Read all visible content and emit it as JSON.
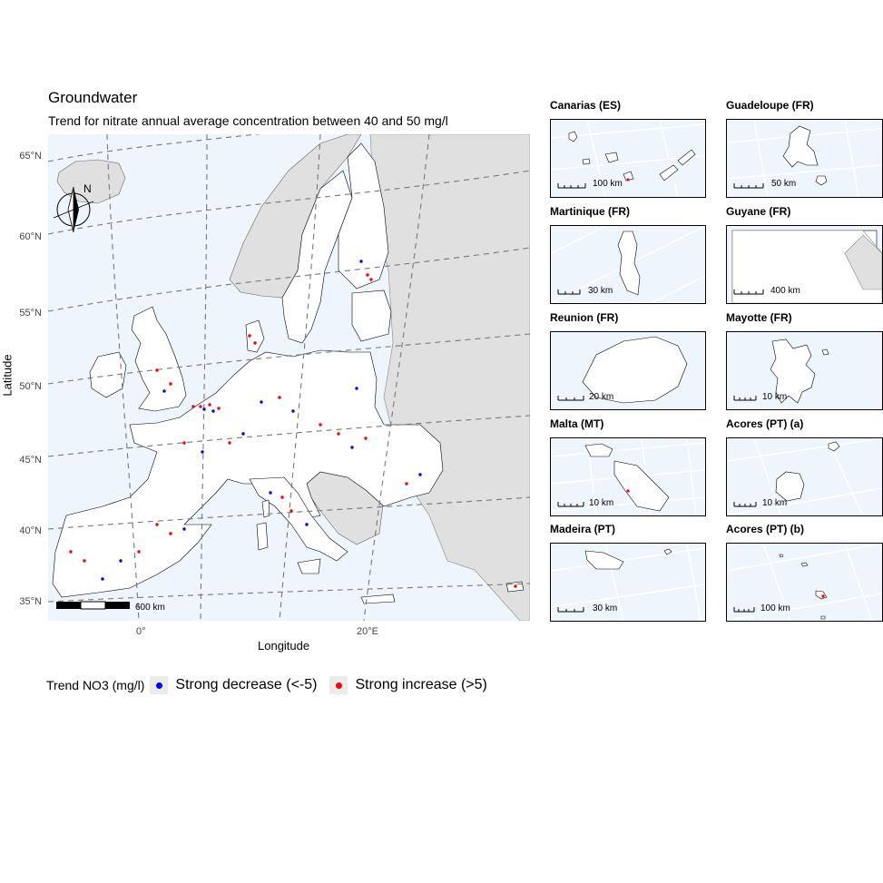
{
  "title": "Groundwater",
  "subtitle": "Trend for nitrate annual average concentration between 40 and 50 mg/l",
  "axes": {
    "xlabel": "Longitude",
    "ylabel": "Latitude",
    "y_ticks": [
      "65°N",
      "60°N",
      "55°N",
      "50°N",
      "45°N",
      "40°N",
      "35°N"
    ],
    "x_ticks": [
      "0°",
      "20°E"
    ]
  },
  "north_arrow_label": "N",
  "main_scale_label": "600 km",
  "legend": {
    "title": "Trend NO3 (mg/l)",
    "items": [
      {
        "label": "Strong decrease (<-5)",
        "color": "#0000ff"
      },
      {
        "label": "Strong increase (>5)",
        "color": "#ff0000"
      }
    ]
  },
  "colors": {
    "sea": "#eef5fd",
    "eu_land": "#ffffff",
    "non_eu_land": "#e0e0e0",
    "graticule": "#777777",
    "decrease": "#0000ff",
    "increase": "#ff0000"
  },
  "insets": [
    {
      "title": "Canarias (ES)",
      "scale": "100 km"
    },
    {
      "title": "Guadeloupe (FR)",
      "scale": "50 km"
    },
    {
      "title": "Martinique (FR)",
      "scale": "30 km"
    },
    {
      "title": "Guyane (FR)",
      "scale": "400 km"
    },
    {
      "title": "Reunion (FR)",
      "scale": "20 km"
    },
    {
      "title": "Mayotte (FR)",
      "scale": "10 km"
    },
    {
      "title": "Malta (MT)",
      "scale": "10 km"
    },
    {
      "title": "Acores (PT) (a)",
      "scale": "10 km"
    },
    {
      "title": "Madeira (PT)",
      "scale": "30 km"
    },
    {
      "title": "Acores (PT) (b)",
      "scale": "100 km"
    }
  ]
}
